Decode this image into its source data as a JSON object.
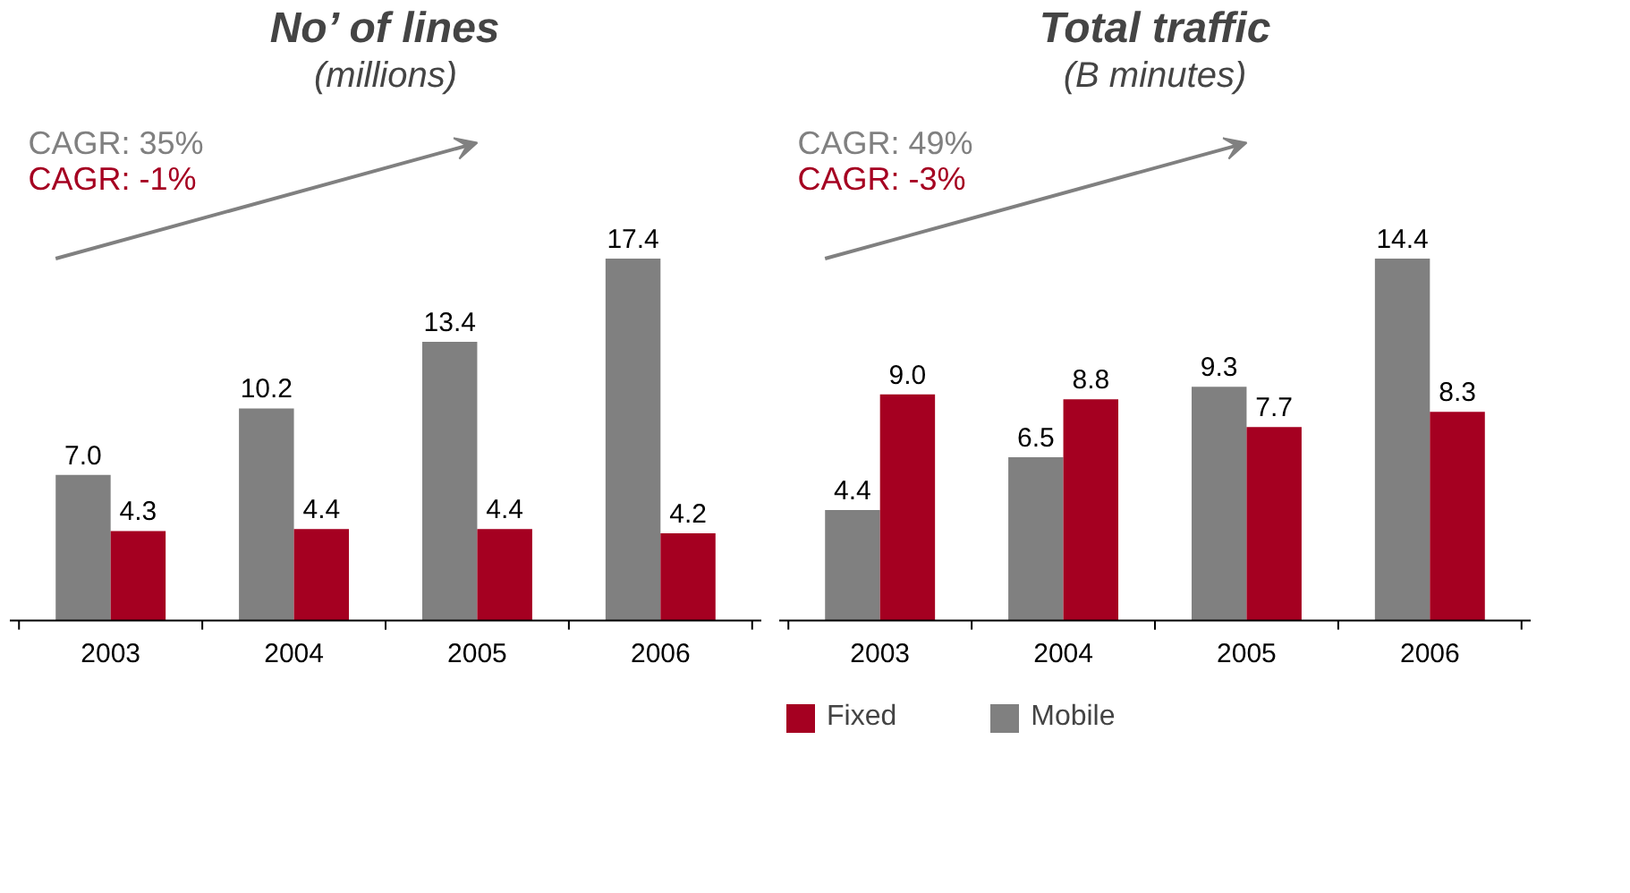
{
  "chart_data": [
    {
      "type": "bar",
      "title": "No’ of lines",
      "subtitle": "(millions)",
      "categories": [
        "2003",
        "2004",
        "2005",
        "2006"
      ],
      "series": [
        {
          "color": "#808080",
          "values": [
            7.0,
            10.2,
            13.4,
            17.4
          ],
          "value_labels": [
            "7.0",
            "10.2",
            "13.4",
            "17.4"
          ]
        },
        {
          "color": "#a50021",
          "values": [
            4.3,
            4.4,
            4.4,
            4.2
          ],
          "value_labels": [
            "4.3",
            "4.4",
            "4.4",
            "4.2"
          ]
        }
      ],
      "annotations": [
        "CAGR: 35%",
        "CAGR: -1%"
      ]
    },
    {
      "type": "bar",
      "title": "Total traffic",
      "subtitle": "(B minutes)",
      "categories": [
        "2003",
        "2004",
        "2005",
        "2006"
      ],
      "series": [
        {
          "name": "Mobile",
          "color": "#808080",
          "values": [
            4.4,
            6.5,
            9.3,
            14.4
          ],
          "value_labels": [
            "4.4",
            "6.5",
            "9.3",
            "14.4"
          ]
        },
        {
          "name": "Fixed",
          "color": "#a50021",
          "values": [
            9.0,
            8.8,
            7.7,
            8.3
          ],
          "value_labels": [
            "9.0",
            "8.8",
            "7.7",
            "8.3"
          ]
        }
      ],
      "annotations": [
        "CAGR: 49%",
        "CAGR: -3%"
      ],
      "legend": "bottom"
    }
  ]
}
